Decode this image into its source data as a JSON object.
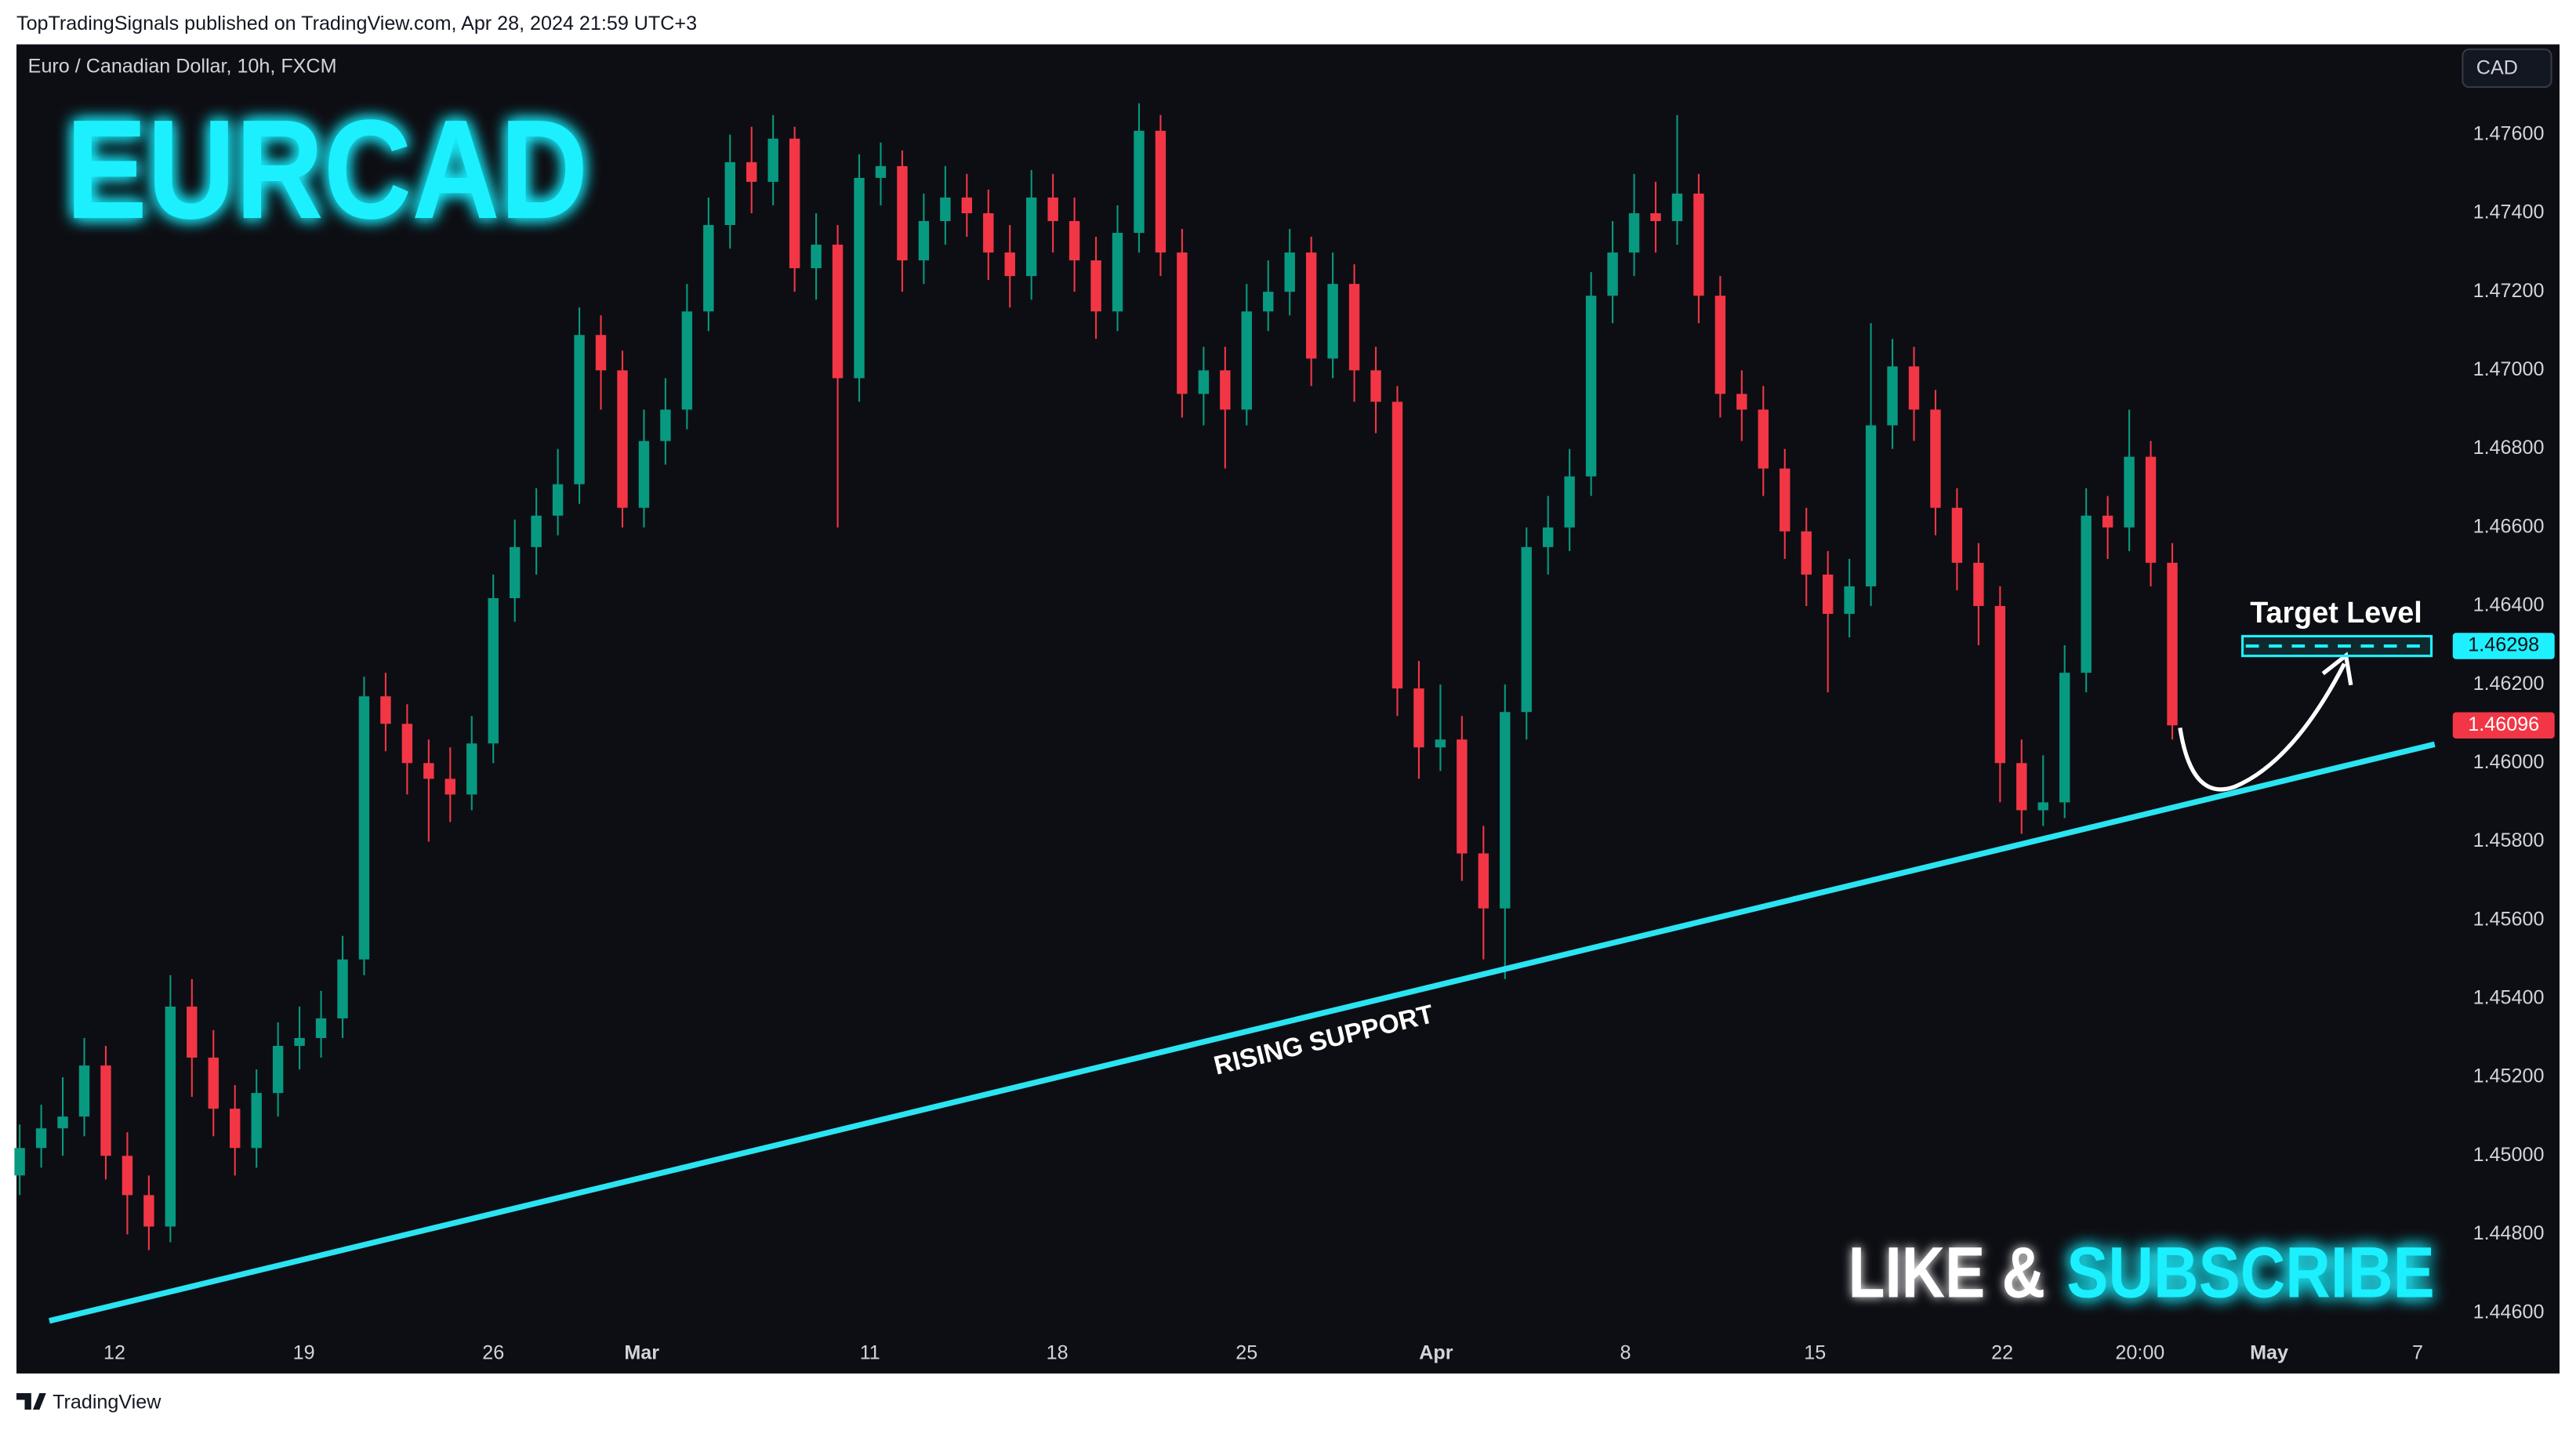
{
  "header": {
    "published": "TopTradingSignals published on TradingView.com, Apr 28, 2024 21:59 UTC+3",
    "symbol": "Euro / Canadian Dollar, 10h, FXCM",
    "currency": "CAD"
  },
  "footer": "TradingView",
  "chart_data": {
    "type": "candlestick",
    "title": "EURCAD",
    "up_color": "#089981",
    "down_color": "#f23645",
    "xlim": [
      -0.15,
      112.8
    ],
    "xticks": [
      {
        "value": 4.4,
        "label": "12"
      },
      {
        "value": 13.2,
        "label": "19"
      },
      {
        "value": 22.0,
        "label": "26"
      },
      {
        "value": 28.9,
        "label": "Mar"
      },
      {
        "value": 39.5,
        "label": "11"
      },
      {
        "value": 48.2,
        "label": "18"
      },
      {
        "value": 57.0,
        "label": "25"
      },
      {
        "value": 65.8,
        "label": "Apr"
      },
      {
        "value": 74.6,
        "label": "8"
      },
      {
        "value": 83.4,
        "label": "15"
      },
      {
        "value": 92.1,
        "label": "22"
      },
      {
        "value": 98.5,
        "label": "20:00"
      },
      {
        "value": 104.5,
        "label": "May"
      },
      {
        "value": 111.4,
        "label": "7"
      }
    ],
    "ylim": [
      1.4445,
      1.4783
    ],
    "yticks": [
      {
        "value": 1.446,
        "label": "1.44600"
      },
      {
        "value": 1.448,
        "label": "1.44800"
      },
      {
        "value": 1.45,
        "label": "1.45000"
      },
      {
        "value": 1.452,
        "label": "1.45200"
      },
      {
        "value": 1.454,
        "label": "1.45400"
      },
      {
        "value": 1.456,
        "label": "1.45600"
      },
      {
        "value": 1.458,
        "label": "1.45800"
      },
      {
        "value": 1.46,
        "label": "1.46000"
      },
      {
        "value": 1.462,
        "label": "1.46200"
      },
      {
        "value": 1.464,
        "label": "1.46400"
      },
      {
        "value": 1.466,
        "label": "1.46600"
      },
      {
        "value": 1.468,
        "label": "1.46800"
      },
      {
        "value": 1.47,
        "label": "1.47000"
      },
      {
        "value": 1.472,
        "label": "1.47200"
      },
      {
        "value": 1.474,
        "label": "1.47400"
      },
      {
        "value": 1.476,
        "label": "1.47600"
      }
    ],
    "open": [
      1.4495,
      1.4502,
      1.4507,
      1.451,
      1.4523,
      1.45,
      1.449,
      1.4482,
      1.4538,
      1.4525,
      1.4512,
      1.4502,
      1.4516,
      1.4528,
      1.453,
      1.4535,
      1.455,
      1.4617,
      1.461,
      1.46,
      1.4596,
      1.4592,
      1.4605,
      1.4642,
      1.4655,
      1.4663,
      1.4671,
      1.4709,
      1.47,
      1.4665,
      1.4682,
      1.469,
      1.4715,
      1.4737,
      1.4753,
      1.4748,
      1.4759,
      1.4726,
      1.4732,
      1.4698,
      1.4749,
      1.4752,
      1.4728,
      1.4738,
      1.4744,
      1.474,
      1.473,
      1.4724,
      1.4744,
      1.4738,
      1.4728,
      1.4715,
      1.4735,
      1.4761,
      1.473,
      1.4694,
      1.47,
      1.469,
      1.4715,
      1.472,
      1.473,
      1.4703,
      1.4722,
      1.47,
      1.4692,
      1.4619,
      1.4604,
      1.4606,
      1.4577,
      1.4563,
      1.4613,
      1.4655,
      1.466,
      1.4673,
      1.4719,
      1.473,
      1.474,
      1.4738,
      1.4745,
      1.4719,
      1.4694,
      1.469,
      1.4675,
      1.4659,
      1.4648,
      1.4638,
      1.4645,
      1.4686,
      1.4701,
      1.469,
      1.4665,
      1.4651,
      1.464,
      1.46,
      1.4588,
      1.459,
      1.4623,
      1.4663,
      1.466,
      1.4678,
      1.4651
    ],
    "high": [
      1.4508,
      1.4513,
      1.452,
      1.453,
      1.4528,
      1.4506,
      1.4495,
      1.4546,
      1.4545,
      1.4532,
      1.4518,
      1.4522,
      1.4534,
      1.4538,
      1.4542,
      1.4556,
      1.4622,
      1.4623,
      1.4615,
      1.4606,
      1.4604,
      1.4612,
      1.4648,
      1.4662,
      1.467,
      1.468,
      1.4716,
      1.4714,
      1.4705,
      1.469,
      1.4698,
      1.4722,
      1.4744,
      1.476,
      1.4762,
      1.4765,
      1.4762,
      1.474,
      1.4737,
      1.4755,
      1.4758,
      1.4756,
      1.4745,
      1.4752,
      1.475,
      1.4746,
      1.4737,
      1.4751,
      1.475,
      1.4744,
      1.4734,
      1.4742,
      1.4768,
      1.4765,
      1.4736,
      1.4706,
      1.4706,
      1.4722,
      1.4728,
      1.4736,
      1.4734,
      1.473,
      1.4727,
      1.4706,
      1.4696,
      1.4626,
      1.462,
      1.4612,
      1.4584,
      1.462,
      1.466,
      1.4668,
      1.468,
      1.4725,
      1.4738,
      1.475,
      1.4748,
      1.4765,
      1.475,
      1.4724,
      1.47,
      1.4696,
      1.468,
      1.4665,
      1.4654,
      1.4652,
      1.4712,
      1.4708,
      1.4706,
      1.4695,
      1.467,
      1.4656,
      1.4645,
      1.4606,
      1.4602,
      1.463,
      1.467,
      1.4668,
      1.469,
      1.4682,
      1.4656
    ],
    "low": [
      1.449,
      1.4497,
      1.45,
      1.4505,
      1.4494,
      1.448,
      1.4476,
      1.4478,
      1.4515,
      1.4505,
      1.4495,
      1.4497,
      1.451,
      1.4522,
      1.4525,
      1.453,
      1.4546,
      1.4603,
      1.4592,
      1.458,
      1.4585,
      1.4588,
      1.46,
      1.4636,
      1.4648,
      1.4658,
      1.4666,
      1.469,
      1.466,
      1.466,
      1.4676,
      1.4685,
      1.471,
      1.4731,
      1.474,
      1.4742,
      1.472,
      1.4718,
      1.466,
      1.4692,
      1.4742,
      1.472,
      1.4722,
      1.4732,
      1.4734,
      1.4723,
      1.4716,
      1.4718,
      1.473,
      1.472,
      1.4708,
      1.471,
      1.473,
      1.4724,
      1.4688,
      1.4686,
      1.4675,
      1.4686,
      1.471,
      1.4714,
      1.4696,
      1.4698,
      1.4692,
      1.4684,
      1.4612,
      1.4596,
      1.4598,
      1.457,
      1.455,
      1.4545,
      1.4606,
      1.4648,
      1.4654,
      1.4668,
      1.4712,
      1.4724,
      1.473,
      1.4732,
      1.4712,
      1.4688,
      1.4682,
      1.4668,
      1.4652,
      1.464,
      1.4618,
      1.4632,
      1.464,
      1.468,
      1.4682,
      1.4658,
      1.4644,
      1.463,
      1.459,
      1.4582,
      1.4584,
      1.4586,
      1.4618,
      1.4652,
      1.4654,
      1.4645,
      1.4606
    ],
    "close": [
      1.4502,
      1.4507,
      1.451,
      1.4523,
      1.45,
      1.449,
      1.4482,
      1.4538,
      1.4525,
      1.4512,
      1.4502,
      1.4516,
      1.4528,
      1.453,
      1.4535,
      1.455,
      1.4617,
      1.461,
      1.46,
      1.4596,
      1.4592,
      1.4605,
      1.4642,
      1.4655,
      1.4663,
      1.4671,
      1.4709,
      1.47,
      1.4665,
      1.4682,
      1.469,
      1.4715,
      1.4737,
      1.4753,
      1.4748,
      1.4759,
      1.4726,
      1.4732,
      1.4698,
      1.4749,
      1.4752,
      1.4728,
      1.4738,
      1.4744,
      1.474,
      1.473,
      1.4724,
      1.4744,
      1.4738,
      1.4728,
      1.4715,
      1.4735,
      1.4761,
      1.473,
      1.4694,
      1.47,
      1.469,
      1.4715,
      1.472,
      1.473,
      1.4703,
      1.4722,
      1.47,
      1.4692,
      1.4619,
      1.4604,
      1.4606,
      1.4577,
      1.4563,
      1.4613,
      1.4655,
      1.466,
      1.4673,
      1.4719,
      1.473,
      1.474,
      1.4738,
      1.4745,
      1.4719,
      1.4694,
      1.469,
      1.4675,
      1.4659,
      1.4648,
      1.4638,
      1.4645,
      1.4686,
      1.4701,
      1.469,
      1.4665,
      1.4651,
      1.464,
      1.46,
      1.4588,
      1.459,
      1.4623,
      1.4663,
      1.466,
      1.4678,
      1.4651,
      1.46096
    ],
    "annotations": {
      "target_label": "Target Level",
      "target_price": 1.46298,
      "support_label": "RISING SUPPORT",
      "cta_white": "LIKE &",
      "cta_cyan": "SUBSCRIBE"
    }
  }
}
